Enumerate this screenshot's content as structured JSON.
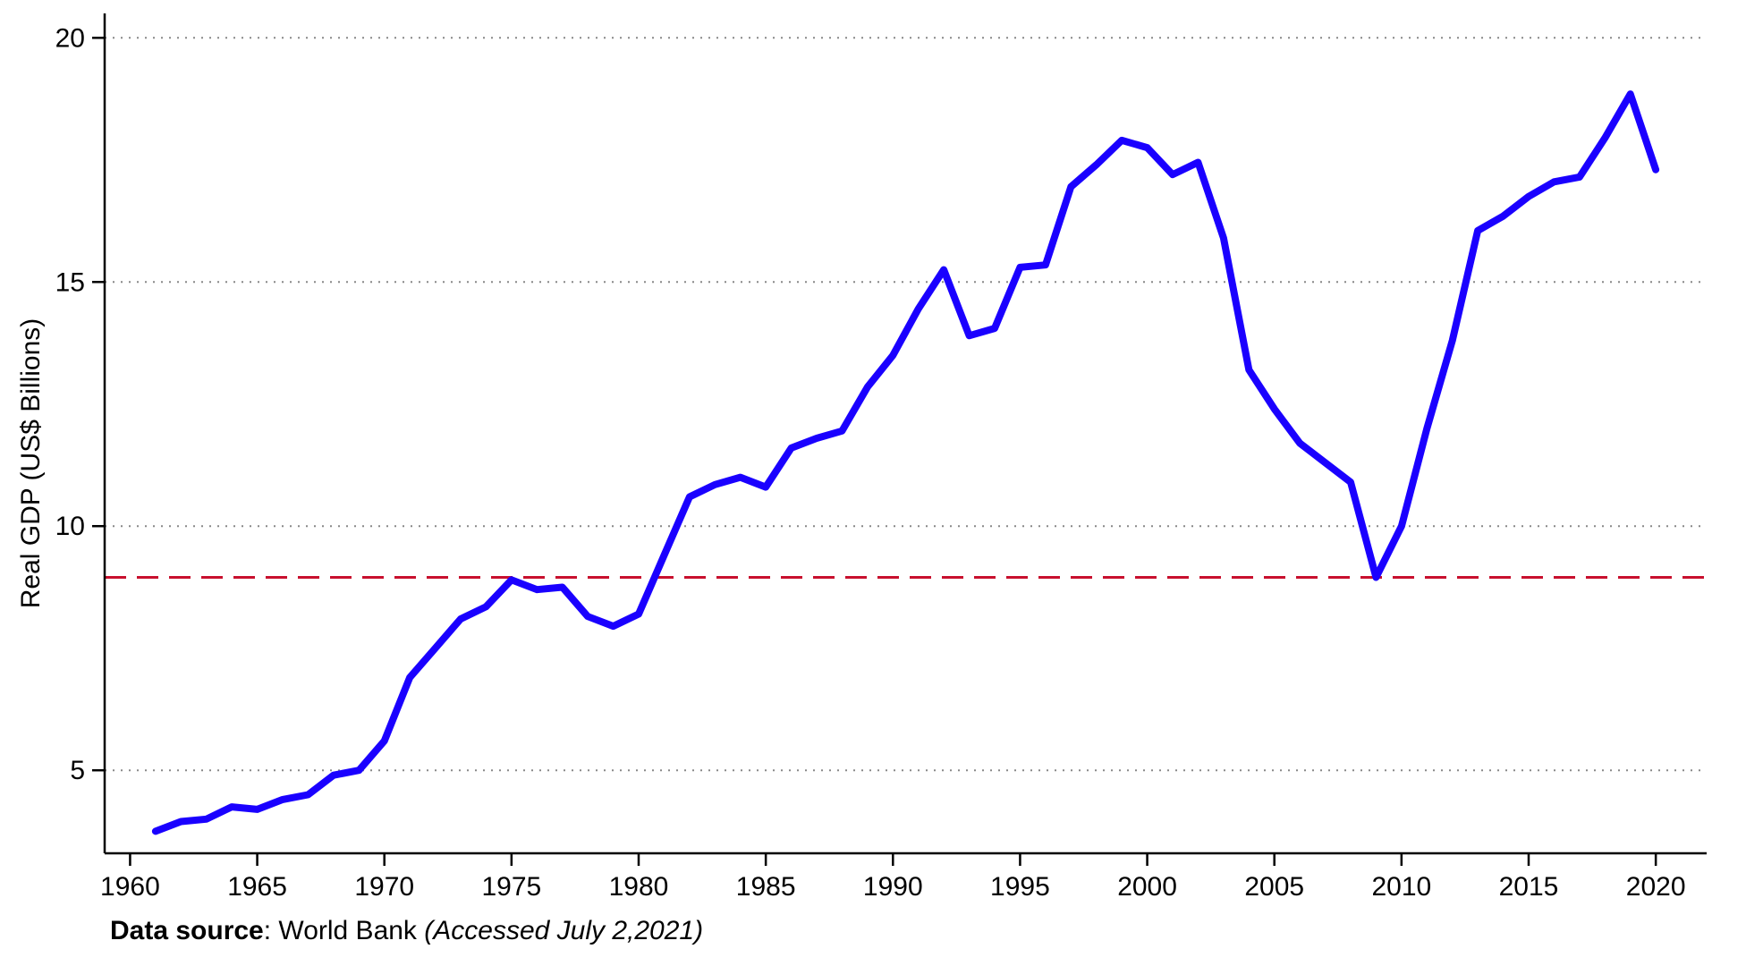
{
  "chart_data": {
    "type": "line",
    "title": "",
    "ylabel": "Real GDP (US$ Billions)",
    "xlabel": "",
    "xlim": [
      1959,
      2022
    ],
    "ylim": [
      3.3,
      20.5
    ],
    "xticks": [
      1960,
      1965,
      1970,
      1975,
      1980,
      1985,
      1990,
      1995,
      2000,
      2005,
      2010,
      2015,
      2020
    ],
    "xtick_labels": [
      "1960",
      "1965",
      "1970",
      "1975",
      "1980",
      "1985",
      "1990",
      "1995",
      "2000",
      "2005",
      "2010",
      "2015",
      "2020"
    ],
    "yticks": [
      5,
      10,
      15,
      20
    ],
    "ytick_labels": [
      "5",
      "10",
      "15",
      "20"
    ],
    "grid": "horizontal dotted",
    "legend": "none",
    "series": [
      {
        "color": "#1a00ff",
        "x": [
          1961,
          1962,
          1963,
          1964,
          1965,
          1966,
          1967,
          1968,
          1969,
          1970,
          1971,
          1972,
          1973,
          1974,
          1975,
          1976,
          1977,
          1978,
          1979,
          1980,
          1981,
          1982,
          1983,
          1984,
          1985,
          1986,
          1987,
          1988,
          1989,
          1990,
          1991,
          1992,
          1993,
          1994,
          1995,
          1996,
          1997,
          1998,
          1999,
          2000,
          2001,
          2002,
          2003,
          2004,
          2005,
          2006,
          2007,
          2008,
          2009,
          2010,
          2011,
          2012,
          2013,
          2014,
          2015,
          2016,
          2017,
          2018,
          2019,
          2020
        ],
        "values": [
          3.75,
          3.95,
          4.0,
          4.25,
          4.2,
          4.4,
          4.5,
          4.9,
          5.0,
          5.6,
          6.9,
          7.5,
          8.1,
          8.35,
          8.9,
          8.7,
          8.75,
          8.15,
          7.95,
          8.2,
          9.4,
          10.6,
          10.85,
          11.0,
          10.8,
          11.6,
          11.8,
          11.95,
          12.85,
          13.5,
          14.45,
          15.25,
          13.9,
          14.05,
          15.3,
          15.35,
          16.95,
          17.4,
          17.9,
          17.75,
          17.2,
          17.45,
          15.9,
          13.2,
          12.4,
          11.7,
          11.3,
          10.9,
          8.95,
          10.0,
          12.0,
          13.8,
          16.05,
          16.35,
          16.75,
          17.05,
          17.15,
          17.95,
          18.85,
          17.3
        ]
      }
    ],
    "reference_line": {
      "value": 8.95,
      "color": "#c8102e",
      "style": "dashed"
    }
  },
  "footer": {
    "source_label": "Data source",
    "source_text": ": World Bank ",
    "accessed_text": "(Accessed July 2,2021)"
  }
}
